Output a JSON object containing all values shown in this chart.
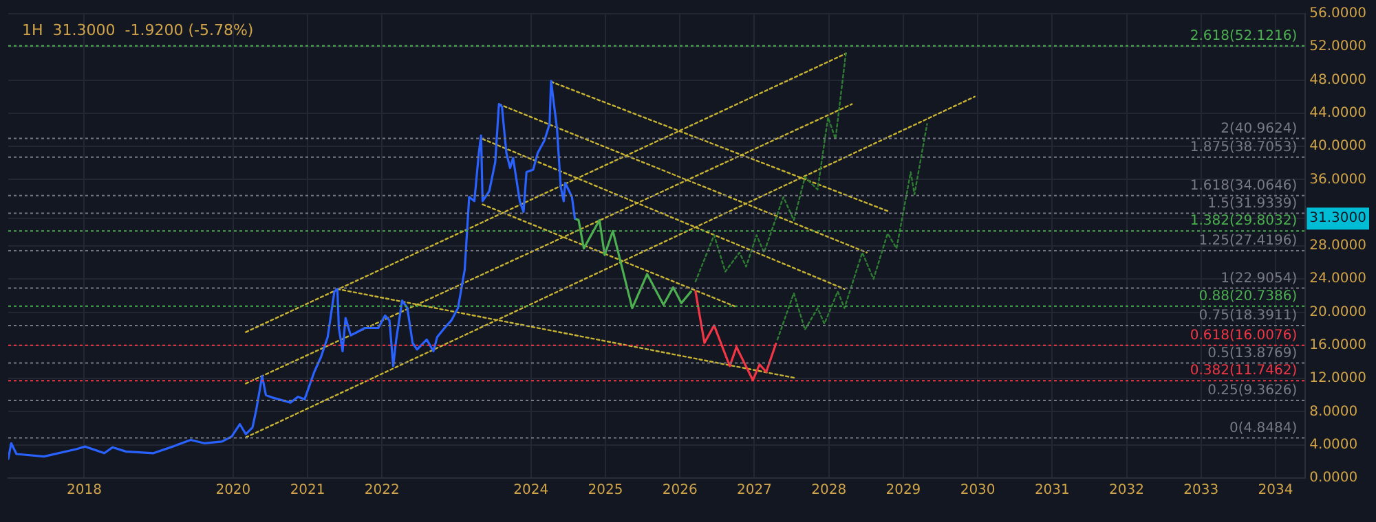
{
  "chart_data": {
    "type": "line",
    "title": "1H  31.3000  -1.9200 (-5.78%)",
    "legend": false,
    "grid": true,
    "marker": "none",
    "xlim": [
      2016.98,
      2034.4
    ],
    "ylim": [
      0,
      56
    ],
    "xticks": [
      2018,
      2020,
      2021,
      2022,
      2024,
      2025,
      2026,
      2027,
      2028,
      2029,
      2030,
      2031,
      2032,
      2033,
      2034
    ],
    "yticks": [
      {
        "value": 0,
        "label": "0.0000"
      },
      {
        "value": 4,
        "label": "4.0000"
      },
      {
        "value": 8,
        "label": "8.0000"
      },
      {
        "value": 12,
        "label": "12.0000"
      },
      {
        "value": 16,
        "label": "16.0000"
      },
      {
        "value": 20,
        "label": "20.0000"
      },
      {
        "value": 24,
        "label": "24.0000"
      },
      {
        "value": 28,
        "label": "28.0000"
      },
      {
        "value": 31.3,
        "label": "31.3000"
      },
      {
        "value": 36,
        "label": "36.0000"
      },
      {
        "value": 40,
        "label": "40.0000"
      },
      {
        "value": 44,
        "label": "44.0000"
      },
      {
        "value": 48,
        "label": "48.0000"
      },
      {
        "value": 52,
        "label": "52.0000"
      },
      {
        "value": 56,
        "label": "56.0000"
      }
    ],
    "series": [
      {
        "color": "#2962ff",
        "line_style": "solid",
        "x": [
          2016.98,
          2017.02,
          2017.09,
          2017.46,
          2017.9,
          2018.01,
          2018.27,
          2018.38,
          2018.56,
          2018.93,
          2019.19,
          2019.43,
          2019.61,
          2019.85,
          2019.98,
          2020.09,
          2020.17,
          2020.26,
          2020.31,
          2020.39,
          2020.44,
          2020.53,
          2020.77,
          2020.87,
          2020.96,
          2021.09,
          2021.18,
          2021.27,
          2021.36,
          2021.4,
          2021.42,
          2021.47,
          2021.51,
          2021.58,
          2021.77,
          2021.95,
          2022.04,
          2022.1,
          2022.15,
          2022.19,
          2022.27,
          2022.34,
          2022.41,
          2022.47,
          2022.6,
          2022.69,
          2022.74,
          2022.84,
          2022.93,
          2023.02,
          2023.11,
          2023.17,
          2023.24,
          2023.3,
          2023.33,
          2023.35,
          2023.44,
          2023.52,
          2023.57,
          2023.61,
          2023.67,
          2023.72,
          2023.76,
          2023.85,
          2023.9,
          2023.94,
          2024.03,
          2024.09,
          2024.18,
          2024.25,
          2024.27,
          2024.35,
          2024.4,
          2024.44,
          2024.46,
          2024.55,
          2024.59
        ],
        "values": [
          2.3,
          4.2,
          2.9,
          2.6,
          3.5,
          3.8,
          3.0,
          3.7,
          3.2,
          3.0,
          3.8,
          4.6,
          4.2,
          4.4,
          5.0,
          6.5,
          5.3,
          6.1,
          8.2,
          12.3,
          10.0,
          9.7,
          9.1,
          9.8,
          9.5,
          12.8,
          14.6,
          17.0,
          22.5,
          22.8,
          18.1,
          15.3,
          19.3,
          17.2,
          18.1,
          18.1,
          19.6,
          19.0,
          13.5,
          16.7,
          21.4,
          20.5,
          16.3,
          15.5,
          16.7,
          15.3,
          17.0,
          18.1,
          19.0,
          20.5,
          25.1,
          33.9,
          33.4,
          39.2,
          41.3,
          33.4,
          34.6,
          38.1,
          45.1,
          44.8,
          39.2,
          37.4,
          38.6,
          33.4,
          32.1,
          36.9,
          37.2,
          39.2,
          40.7,
          42.7,
          47.9,
          42.1,
          35.1,
          33.4,
          35.6,
          33.9,
          31.3
        ]
      },
      {
        "color": "#4caf50",
        "line_style": "solid",
        "x": [
          2024.59,
          2024.64,
          2024.71,
          2024.92,
          2024.99,
          2025.1,
          2025.36,
          2025.56,
          2025.78,
          2025.91,
          2026.02,
          2026.15
        ],
        "values": [
          31.3,
          31.1,
          27.7,
          31.1,
          26.9,
          29.8,
          20.5,
          24.6,
          20.9,
          23.0,
          21.1,
          22.5
        ]
      },
      {
        "color": "#f23645",
        "line_style": "solid",
        "x": [
          2026.21,
          2026.33,
          2026.46,
          2026.67,
          2026.76,
          2026.98,
          2027.07,
          2027.16,
          2027.29
        ],
        "values": [
          22.5,
          16.3,
          18.4,
          13.5,
          15.8,
          11.8,
          13.7,
          12.8,
          16.2
        ]
      },
      {
        "color": "#2e7d32",
        "line_style": "dotted",
        "x": [
          2026.21,
          2026.46,
          2026.61,
          2026.8,
          2026.89,
          2027.03,
          2027.13,
          2027.39,
          2027.53,
          2027.68,
          2027.85,
          2027.99,
          2028.09,
          2028.23
        ],
        "values": [
          23.7,
          29.3,
          24.9,
          27.2,
          25.5,
          29.3,
          27.2,
          33.9,
          31.1,
          36.3,
          34.8,
          43.5,
          40.9,
          51.3
        ]
      },
      {
        "color": "#2e7d32",
        "line_style": "dotted",
        "x": [
          2027.31,
          2027.53,
          2027.68,
          2027.85,
          2027.94,
          2028.12,
          2028.21,
          2028.45,
          2028.6,
          2028.79,
          2028.91,
          2029.1,
          2029.15,
          2029.32
        ],
        "values": [
          16.7,
          22.3,
          17.9,
          20.5,
          18.6,
          22.5,
          20.5,
          27.2,
          24.0,
          29.5,
          27.7,
          36.9,
          34.2,
          42.7
        ]
      },
      {
        "color": "#c8b432",
        "line_style": "dotted",
        "x": [
          2020.17,
          2028.23
        ],
        "values": [
          17.6,
          51.2
        ]
      },
      {
        "color": "#c8b432",
        "line_style": "dotted",
        "x": [
          2020.17,
          2028.31
        ],
        "values": [
          11.4,
          45.1
        ]
      },
      {
        "color": "#c8b432",
        "line_style": "dotted",
        "x": [
          2020.17,
          2029.96
        ],
        "values": [
          4.9,
          46.0
        ]
      },
      {
        "color": "#c8b432",
        "line_style": "dotted",
        "x": [
          2021.4,
          2027.53
        ],
        "values": [
          22.8,
          12.1
        ]
      },
      {
        "color": "#c8b432",
        "line_style": "dotted",
        "x": [
          2023.57,
          2028.51
        ],
        "values": [
          45.1,
          27.2
        ]
      },
      {
        "color": "#c8b432",
        "line_style": "dotted",
        "x": [
          2024.27,
          2028.82
        ],
        "values": [
          47.8,
          32.1
        ]
      },
      {
        "color": "#c8b432",
        "line_style": "dotted",
        "x": [
          2023.35,
          2028.21
        ],
        "values": [
          40.9,
          22.8
        ]
      },
      {
        "color": "#c8b432",
        "line_style": "dotted",
        "x": [
          2023.35,
          2026.74
        ],
        "values": [
          33.0,
          20.7
        ]
      }
    ],
    "ref_lines": [
      {
        "axis": "y",
        "value": 52.1216,
        "label": "2.618(52.1216)",
        "color": "#4caf50",
        "line_style": "dotted"
      },
      {
        "axis": "y",
        "value": 40.9624,
        "label": "2(40.9624)",
        "color": "#787b86",
        "line_style": "dotted"
      },
      {
        "axis": "y",
        "value": 38.7053,
        "label": "1.875(38.7053)",
        "color": "#787b86",
        "line_style": "dotted"
      },
      {
        "axis": "y",
        "value": 34.0646,
        "label": "1.618(34.0646)",
        "color": "#787b86",
        "line_style": "dotted"
      },
      {
        "axis": "y",
        "value": 31.9339,
        "label": "1.5(31.9339)",
        "color": "#787b86",
        "line_style": "dotted"
      },
      {
        "axis": "y",
        "value": 29.8032,
        "label": "1.382(29.8032)",
        "color": "#4caf50",
        "line_style": "dotted"
      },
      {
        "axis": "y",
        "value": 27.4196,
        "label": "1.25(27.4196)",
        "color": "#787b86",
        "line_style": "dotted"
      },
      {
        "axis": "y",
        "value": 22.9054,
        "label": "1(22.9054)",
        "color": "#787b86",
        "line_style": "dotted"
      },
      {
        "axis": "y",
        "value": 20.7386,
        "label": "0.88(20.7386)",
        "color": "#4caf50",
        "line_style": "dotted"
      },
      {
        "axis": "y",
        "value": 18.3911,
        "label": "0.75(18.3911)",
        "color": "#787b86",
        "line_style": "dotted"
      },
      {
        "axis": "y",
        "value": 16.0076,
        "label": "0.618(16.0076)",
        "color": "#f23645",
        "line_style": "dotted"
      },
      {
        "axis": "y",
        "value": 13.8769,
        "label": "0.5(13.8769)",
        "color": "#787b86",
        "line_style": "dotted"
      },
      {
        "axis": "y",
        "value": 11.7462,
        "label": "0.382(11.7462)",
        "color": "#f23645",
        "line_style": "dotted"
      },
      {
        "axis": "y",
        "value": 9.3626,
        "label": "0.25(9.3626)",
        "color": "#787b86",
        "line_style": "dotted"
      },
      {
        "axis": "y",
        "value": 4.8484,
        "label": "0(4.8484)",
        "color": "#787b86",
        "line_style": "dotted"
      }
    ]
  }
}
